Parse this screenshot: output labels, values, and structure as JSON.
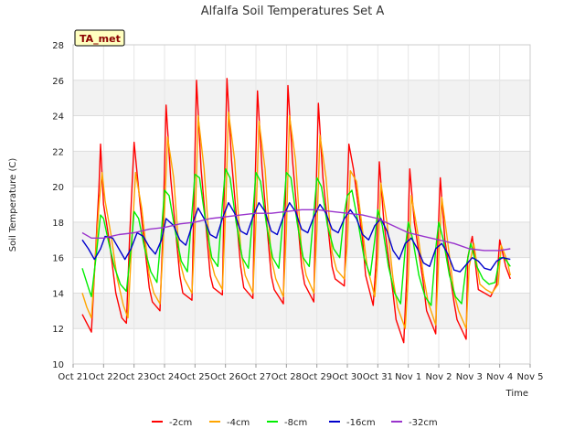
{
  "chart_data": {
    "type": "line",
    "title": "Alfalfa Soil Temperatures Set A",
    "xlabel": "Time",
    "ylabel": "Soil Temperature (C)",
    "tag": "TA_met",
    "ylim": [
      10,
      28
    ],
    "yticks": [
      10,
      12,
      14,
      16,
      18,
      20,
      22,
      24,
      26,
      28
    ],
    "xlim": [
      0,
      15
    ],
    "xticks": [
      {
        "x": 0,
        "label": "Oct 21"
      },
      {
        "x": 1,
        "label": "Oct 22"
      },
      {
        "x": 2,
        "label": "Oct 23"
      },
      {
        "x": 3,
        "label": "Oct 24"
      },
      {
        "x": 4,
        "label": "Oct 25"
      },
      {
        "x": 5,
        "label": "Oct 26"
      },
      {
        "x": 6,
        "label": "Oct 27"
      },
      {
        "x": 7,
        "label": "Oct 28"
      },
      {
        "x": 8,
        "label": "Oct 29"
      },
      {
        "x": 9,
        "label": "Oct 30"
      },
      {
        "x": 10,
        "label": "Oct 31"
      },
      {
        "x": 11,
        "label": "Nov 1"
      },
      {
        "x": 12,
        "label": "Nov 2"
      },
      {
        "x": 13,
        "label": "Nov 3"
      },
      {
        "x": 14,
        "label": "Nov 4"
      },
      {
        "x": 15,
        "label": "Nov 5"
      }
    ],
    "grid": true,
    "legend_position": "bottom",
    "series": [
      {
        "name": "-2cm",
        "color": "#ff0000",
        "x": [
          0.3,
          0.45,
          0.6,
          0.85,
          0.9,
          1.0,
          1.2,
          1.4,
          1.6,
          1.75,
          1.85,
          2.0,
          2.2,
          2.5,
          2.6,
          2.85,
          2.95,
          3.05,
          3.2,
          3.5,
          3.6,
          3.9,
          3.95,
          4.05,
          4.2,
          4.5,
          4.6,
          4.9,
          4.95,
          5.05,
          5.2,
          5.5,
          5.6,
          5.9,
          5.95,
          6.05,
          6.2,
          6.5,
          6.6,
          6.9,
          6.95,
          7.05,
          7.2,
          7.5,
          7.6,
          7.9,
          7.95,
          8.05,
          8.2,
          8.5,
          8.6,
          8.9,
          8.95,
          9.05,
          9.2,
          9.5,
          9.6,
          9.85,
          9.95,
          10.05,
          10.2,
          10.5,
          10.6,
          10.85,
          10.95,
          11.05,
          11.2,
          11.5,
          11.6,
          11.9,
          11.95,
          12.05,
          12.2,
          12.5,
          12.6,
          12.9,
          12.95,
          13.1,
          13.3,
          13.5,
          13.7,
          13.9,
          14.0,
          14.2,
          14.35
        ],
        "y": [
          12.8,
          12.3,
          11.8,
          20.0,
          22.4,
          19.0,
          16.8,
          14.0,
          12.6,
          12.3,
          17.0,
          22.5,
          19.0,
          14.3,
          13.5,
          13.0,
          17.5,
          24.6,
          20.5,
          15.0,
          14.0,
          13.6,
          18.0,
          26.0,
          21.0,
          15.0,
          14.3,
          13.9,
          19.0,
          26.1,
          21.5,
          15.5,
          14.3,
          13.7,
          18.5,
          25.4,
          21.0,
          15.0,
          14.2,
          13.4,
          18.0,
          25.7,
          21.5,
          15.5,
          14.5,
          13.5,
          18.0,
          24.7,
          20.5,
          15.5,
          14.8,
          14.4,
          17.0,
          22.4,
          21.0,
          17.0,
          15.0,
          13.3,
          16.0,
          21.4,
          18.0,
          14.0,
          12.5,
          11.2,
          15.0,
          21.0,
          18.0,
          14.5,
          13.0,
          11.7,
          16.0,
          20.5,
          17.0,
          13.5,
          12.5,
          11.4,
          16.0,
          17.2,
          14.2,
          14.0,
          13.8,
          14.5,
          17.0,
          15.5,
          14.8
        ]
      },
      {
        "name": "-4cm",
        "color": "#ffa500",
        "x": [
          0.3,
          0.45,
          0.6,
          0.85,
          0.95,
          1.05,
          1.25,
          1.45,
          1.65,
          1.8,
          1.9,
          2.05,
          2.25,
          2.5,
          2.65,
          2.85,
          2.95,
          3.1,
          3.3,
          3.5,
          3.65,
          3.9,
          4.0,
          4.1,
          4.3,
          4.5,
          4.65,
          4.9,
          5.0,
          5.1,
          5.3,
          5.5,
          5.65,
          5.9,
          6.0,
          6.1,
          6.3,
          6.5,
          6.65,
          6.9,
          7.0,
          7.1,
          7.3,
          7.5,
          7.65,
          7.9,
          8.0,
          8.1,
          8.3,
          8.5,
          8.65,
          8.9,
          9.0,
          9.1,
          9.3,
          9.5,
          9.65,
          9.9,
          10.0,
          10.1,
          10.3,
          10.5,
          10.65,
          10.9,
          11.0,
          11.1,
          11.3,
          11.5,
          11.65,
          11.9,
          12.0,
          12.1,
          12.3,
          12.5,
          12.65,
          12.9,
          13.0,
          13.15,
          13.35,
          13.55,
          13.75,
          13.95,
          14.05,
          14.25,
          14.35
        ],
        "y": [
          14.0,
          13.2,
          12.6,
          19.0,
          20.8,
          19.2,
          17.2,
          14.8,
          13.3,
          12.6,
          16.0,
          20.8,
          18.8,
          15.0,
          14.0,
          13.4,
          16.5,
          22.8,
          20.5,
          15.8,
          14.8,
          14.0,
          17.5,
          24.0,
          21.0,
          16.0,
          15.0,
          14.2,
          18.5,
          24.2,
          21.5,
          16.5,
          15.0,
          14.0,
          18.0,
          23.7,
          21.0,
          16.0,
          14.8,
          13.8,
          17.5,
          24.0,
          21.5,
          16.3,
          15.0,
          14.0,
          17.5,
          22.9,
          20.5,
          16.3,
          15.3,
          14.8,
          16.8,
          20.9,
          20.3,
          17.5,
          15.5,
          13.8,
          16.0,
          20.2,
          18.0,
          14.8,
          13.2,
          12.0,
          15.0,
          19.5,
          17.5,
          15.0,
          13.5,
          12.2,
          16.0,
          19.4,
          16.8,
          14.0,
          13.0,
          12.0,
          15.5,
          16.8,
          14.5,
          14.2,
          14.0,
          14.5,
          16.7,
          15.8,
          15.0
        ]
      },
      {
        "name": "-8cm",
        "color": "#00ee00",
        "x": [
          0.3,
          0.5,
          0.6,
          0.75,
          0.9,
          1.0,
          1.15,
          1.35,
          1.55,
          1.75,
          1.9,
          2.0,
          2.15,
          2.35,
          2.55,
          2.75,
          2.9,
          3.0,
          3.15,
          3.35,
          3.55,
          3.75,
          3.9,
          4.0,
          4.15,
          4.35,
          4.55,
          4.75,
          4.9,
          5.0,
          5.15,
          5.35,
          5.55,
          5.75,
          5.9,
          6.0,
          6.15,
          6.35,
          6.55,
          6.75,
          6.9,
          7.0,
          7.15,
          7.35,
          7.55,
          7.75,
          7.9,
          8.0,
          8.15,
          8.35,
          8.55,
          8.75,
          8.9,
          9.0,
          9.15,
          9.35,
          9.55,
          9.75,
          9.9,
          10.0,
          10.15,
          10.35,
          10.55,
          10.75,
          10.9,
          11.0,
          11.15,
          11.35,
          11.55,
          11.75,
          11.9,
          12.0,
          12.15,
          12.35,
          12.55,
          12.75,
          12.9,
          13.05,
          13.25,
          13.45,
          13.65,
          13.85,
          14.0,
          14.15,
          14.35
        ],
        "y": [
          15.4,
          14.3,
          13.8,
          16.0,
          18.4,
          18.2,
          17.0,
          15.5,
          14.5,
          14.1,
          16.5,
          18.6,
          18.2,
          16.5,
          15.2,
          14.6,
          17.5,
          19.8,
          19.5,
          17.5,
          15.8,
          15.2,
          18.5,
          20.7,
          20.5,
          18.0,
          16.0,
          15.5,
          19.0,
          21.0,
          20.5,
          18.0,
          16.0,
          15.4,
          18.5,
          20.8,
          20.3,
          17.8,
          16.0,
          15.4,
          18.5,
          20.8,
          20.5,
          18.0,
          16.0,
          15.5,
          18.5,
          20.5,
          20.0,
          17.8,
          16.5,
          16.0,
          18.5,
          19.5,
          19.8,
          18.0,
          16.0,
          15.0,
          17.0,
          18.7,
          17.8,
          15.5,
          14.0,
          13.4,
          16.5,
          18.0,
          17.0,
          15.0,
          13.8,
          13.3,
          16.5,
          18.0,
          17.0,
          15.0,
          13.8,
          13.4,
          15.5,
          16.8,
          15.5,
          14.8,
          14.5,
          14.6,
          16.0,
          16.0,
          15.5
        ]
      },
      {
        "name": "-16cm",
        "color": "#0000cc",
        "x": [
          0.3,
          0.5,
          0.7,
          0.9,
          1.05,
          1.3,
          1.5,
          1.7,
          1.9,
          2.1,
          2.3,
          2.5,
          2.7,
          2.9,
          3.05,
          3.3,
          3.5,
          3.7,
          3.9,
          4.1,
          4.3,
          4.5,
          4.7,
          4.9,
          5.1,
          5.3,
          5.5,
          5.7,
          5.9,
          6.1,
          6.3,
          6.5,
          6.7,
          6.9,
          7.1,
          7.3,
          7.5,
          7.7,
          7.9,
          8.1,
          8.3,
          8.5,
          8.7,
          8.9,
          9.1,
          9.3,
          9.5,
          9.7,
          9.9,
          10.1,
          10.3,
          10.5,
          10.7,
          10.9,
          11.1,
          11.3,
          11.5,
          11.7,
          11.9,
          12.1,
          12.3,
          12.5,
          12.7,
          12.9,
          13.1,
          13.3,
          13.5,
          13.7,
          13.9,
          14.1,
          14.35
        ],
        "y": [
          17.0,
          16.5,
          15.9,
          16.5,
          17.2,
          17.1,
          16.5,
          15.9,
          16.5,
          17.4,
          17.2,
          16.6,
          16.2,
          17.0,
          18.2,
          17.8,
          17.0,
          16.7,
          17.8,
          18.8,
          18.2,
          17.3,
          17.1,
          18.2,
          19.1,
          18.5,
          17.5,
          17.3,
          18.3,
          19.1,
          18.6,
          17.5,
          17.3,
          18.3,
          19.1,
          18.6,
          17.6,
          17.4,
          18.3,
          19.0,
          18.5,
          17.6,
          17.4,
          18.2,
          18.7,
          18.2,
          17.3,
          17.0,
          17.8,
          18.2,
          17.5,
          16.4,
          15.9,
          16.8,
          17.1,
          16.5,
          15.7,
          15.5,
          16.5,
          16.8,
          16.2,
          15.3,
          15.2,
          15.6,
          16.0,
          15.8,
          15.4,
          15.3,
          15.8,
          16.0,
          15.9
        ]
      },
      {
        "name": "-32cm",
        "color": "#9933cc",
        "x": [
          0.3,
          0.6,
          1.0,
          1.5,
          2.0,
          2.5,
          3.0,
          3.5,
          4.0,
          4.5,
          5.0,
          5.5,
          6.0,
          6.5,
          7.0,
          7.5,
          8.0,
          8.5,
          9.0,
          9.5,
          10.0,
          10.5,
          11.0,
          11.5,
          12.0,
          12.5,
          13.0,
          13.5,
          14.0,
          14.35
        ],
        "y": [
          17.4,
          17.1,
          17.1,
          17.3,
          17.4,
          17.6,
          17.7,
          17.9,
          18.0,
          18.2,
          18.3,
          18.4,
          18.5,
          18.5,
          18.6,
          18.7,
          18.7,
          18.6,
          18.5,
          18.4,
          18.2,
          17.8,
          17.4,
          17.2,
          17.0,
          16.8,
          16.5,
          16.4,
          16.4,
          16.5
        ]
      }
    ]
  }
}
